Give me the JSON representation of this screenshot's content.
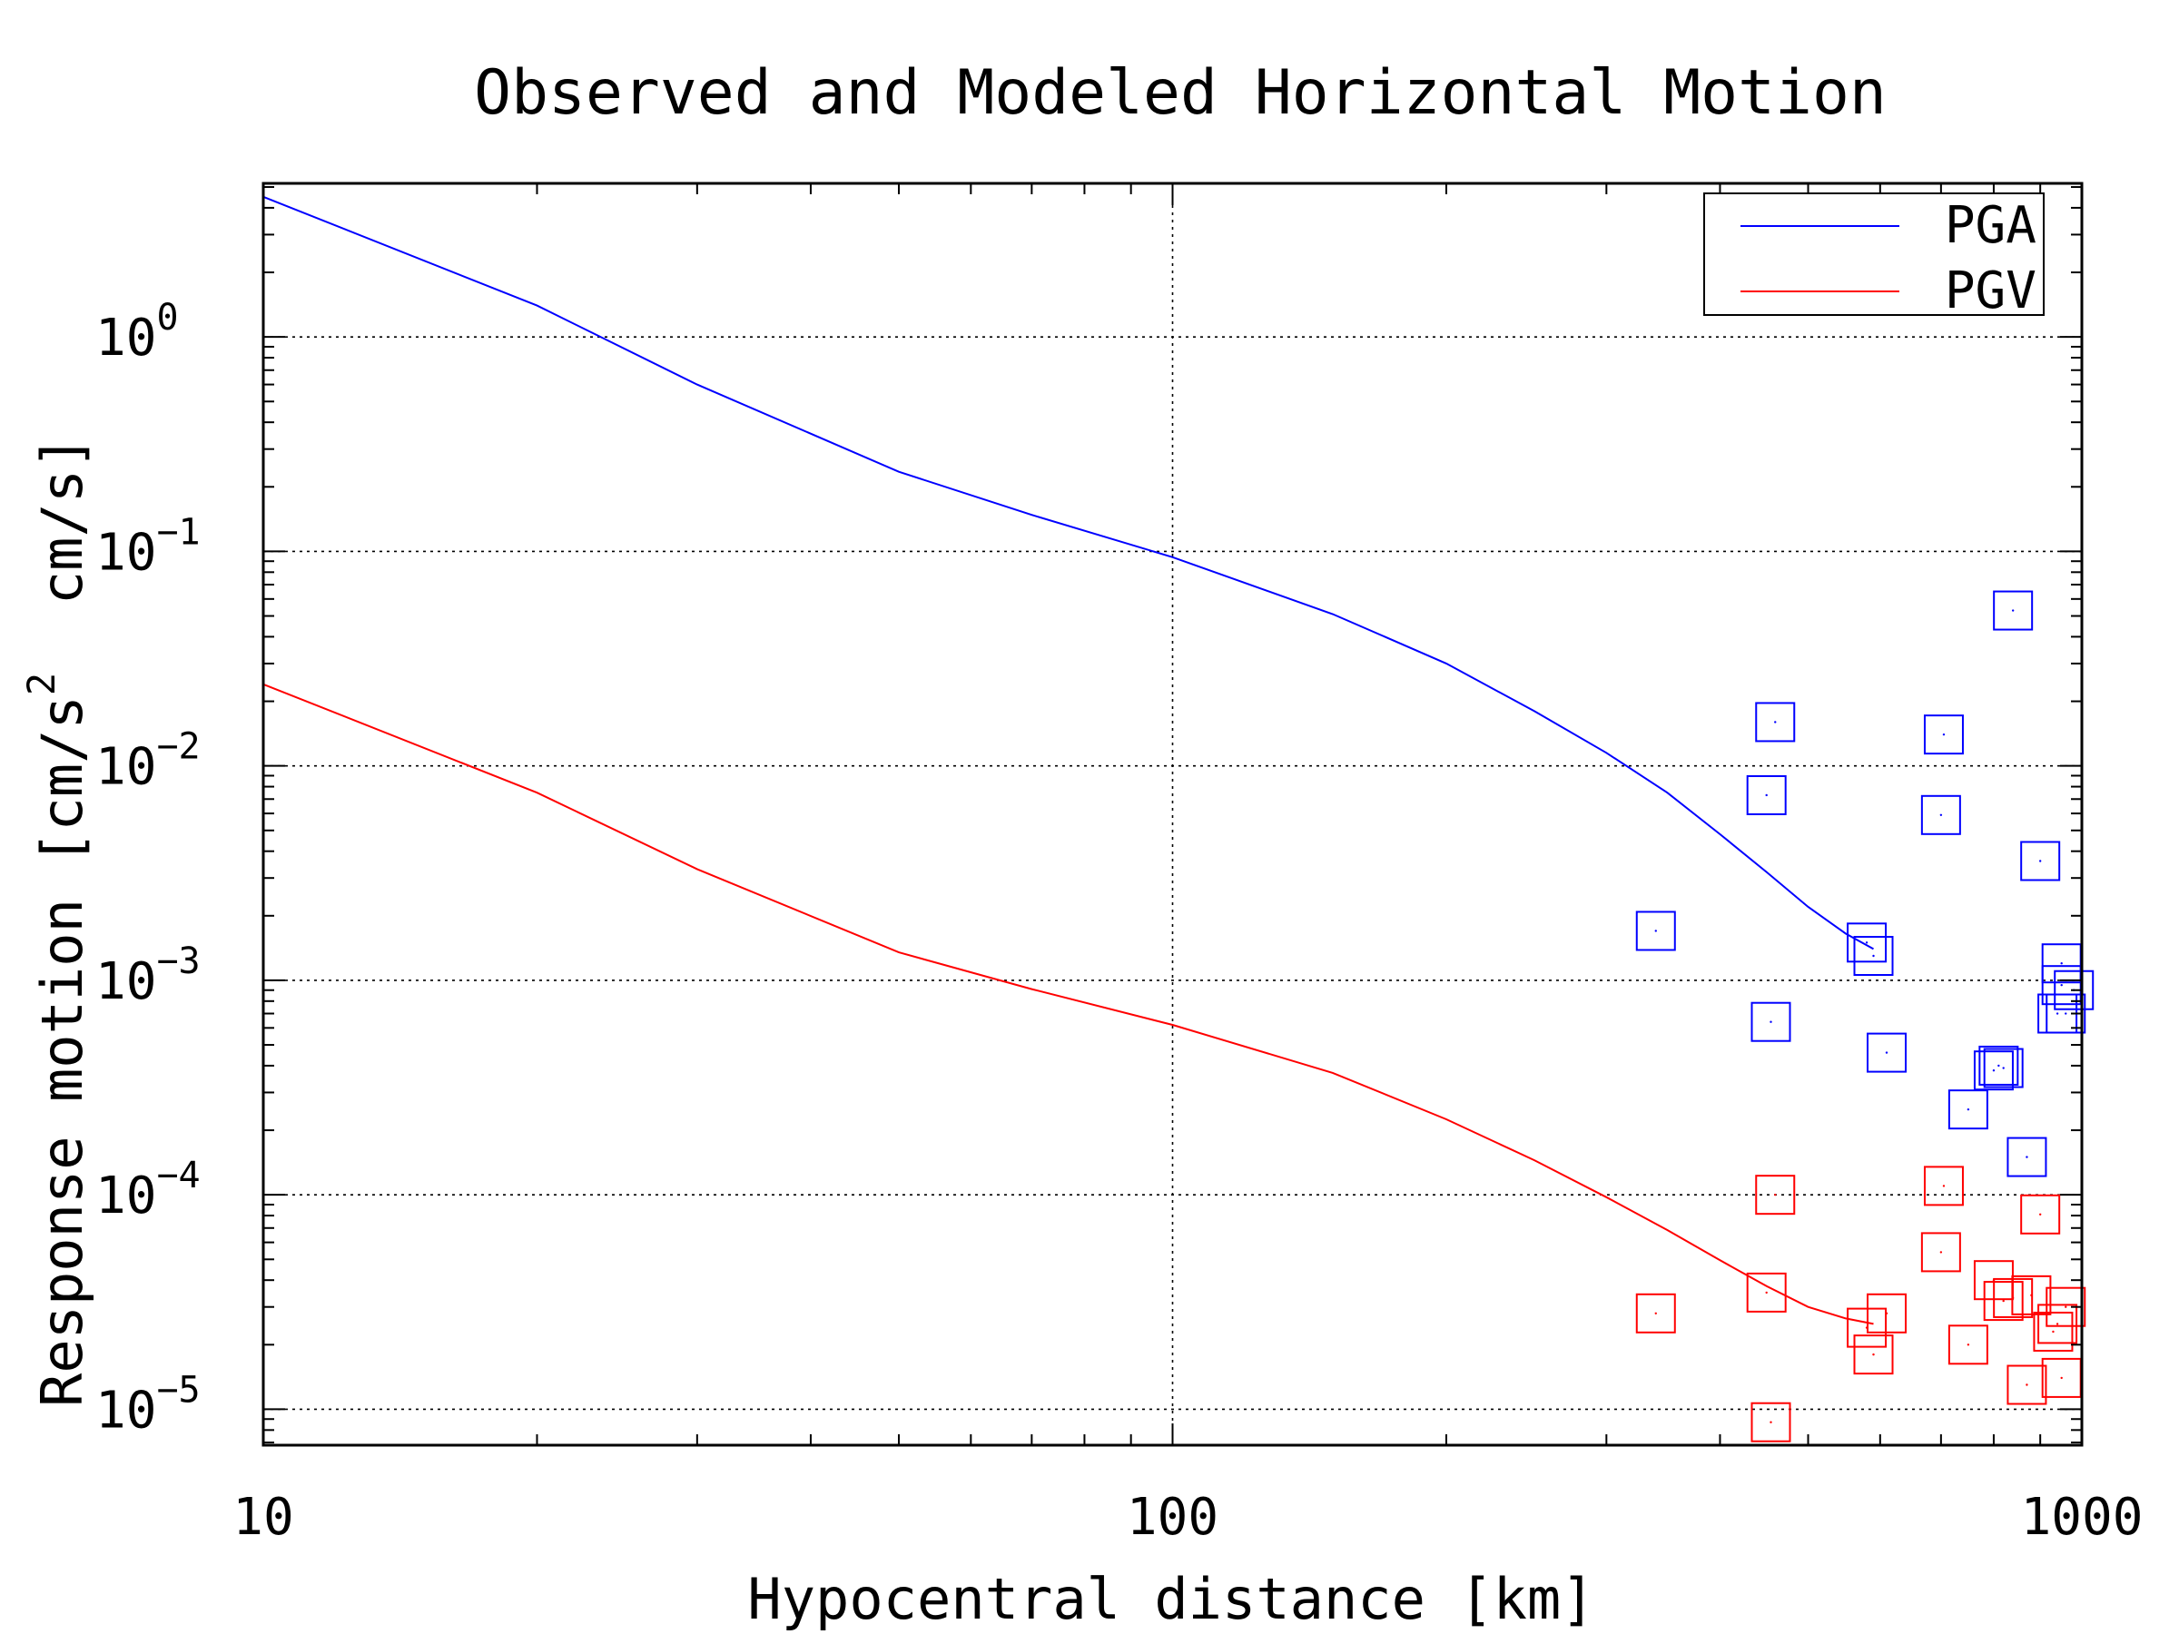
{
  "chart_data": {
    "type": "scatter",
    "title": "Observed and Modeled Horizontal Motion",
    "xlabel": "Hypocentral distance [km]",
    "ylabel": "Response motion [cm/s²  cm/s]",
    "ylabel_parts": [
      "Response motion [cm/s",
      "2",
      "  cm/s]"
    ],
    "x_scale": "log",
    "y_scale": "log",
    "xlim": [
      10,
      1000
    ],
    "ylim": [
      6.8e-06,
      5.2
    ],
    "x_ticks": [
      {
        "value": 10,
        "label": "10"
      },
      {
        "value": 100,
        "label": "100"
      },
      {
        "value": 1000,
        "label": "1000"
      }
    ],
    "y_ticks": [
      {
        "value": 1,
        "base": "10",
        "exp": "0"
      },
      {
        "value": 0.1,
        "base": "10",
        "exp": "−1"
      },
      {
        "value": 0.01,
        "base": "10",
        "exp": "−2"
      },
      {
        "value": 0.001,
        "base": "10",
        "exp": "−3"
      },
      {
        "value": 0.0001,
        "base": "10",
        "exp": "−4"
      },
      {
        "value": 1e-05,
        "base": "10",
        "exp": "−5"
      }
    ],
    "grid": true,
    "legend_position": "top-right",
    "series": [
      {
        "name": "PGA",
        "color": "#0000ff",
        "model": {
          "x": [
            10,
            20,
            30,
            50,
            70,
            100,
            150,
            200,
            250,
            300,
            350,
            400,
            450,
            500,
            550,
            590
          ],
          "y": [
            4.5,
            1.4,
            0.6,
            0.235,
            0.148,
            0.094,
            0.051,
            0.03,
            0.018,
            0.0115,
            0.0075,
            0.0048,
            0.0032,
            0.0022,
            0.00165,
            0.0014
          ]
        },
        "observed": {
          "x": [
            340,
            450,
            460,
            455,
            580,
            590,
            610,
            700,
            705,
            750,
            800,
            810,
            840,
            870,
            900,
            940,
            950,
            950,
            960,
            980,
            820
          ],
          "y": [
            0.0017,
            0.0073,
            0.016,
            0.00064,
            0.0015,
            0.0013,
            0.00046,
            0.0059,
            0.014,
            0.00025,
            0.00038,
            0.0004,
            0.053,
            0.00015,
            0.0036,
            0.0007,
            0.0012,
            0.00095,
            0.0007,
            0.0009,
            0.00039
          ]
        }
      },
      {
        "name": "PGV",
        "color": "#ff0000",
        "model": {
          "x": [
            10,
            20,
            30,
            50,
            70,
            100,
            150,
            200,
            250,
            300,
            350,
            400,
            450,
            500,
            550,
            590
          ],
          "y": [
            0.024,
            0.0075,
            0.0033,
            0.00135,
            0.00091,
            0.00062,
            0.00037,
            0.000225,
            0.000145,
            9.75e-05,
            6.85e-05,
            4.95e-05,
            3.75e-05,
            3e-05,
            2.65e-05,
            2.5e-05
          ]
        },
        "observed": {
          "x": [
            340,
            450,
            455,
            460,
            580,
            590,
            610,
            700,
            705,
            750,
            800,
            820,
            840,
            870,
            880,
            900,
            930,
            940,
            950,
            960
          ],
          "y": [
            2.8e-05,
            3.5e-05,
            8.7e-06,
            0.0001,
            2.4e-05,
            1.8e-05,
            2.8e-05,
            5.4e-05,
            0.00011,
            2e-05,
            4e-05,
            3.2e-05,
            3.3e-05,
            1.3e-05,
            3.4e-05,
            8.1e-05,
            2.3e-05,
            2.5e-05,
            1.4e-05,
            3e-05
          ]
        }
      }
    ]
  }
}
